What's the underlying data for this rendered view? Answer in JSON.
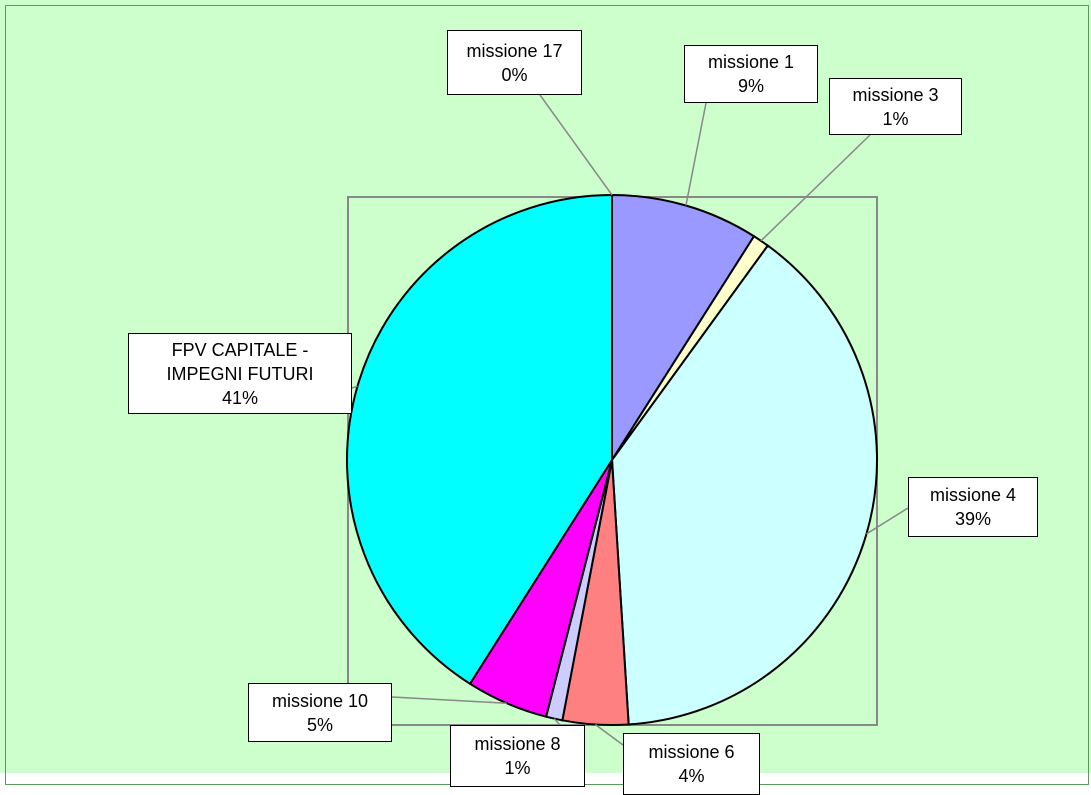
{
  "chart_data": {
    "type": "pie",
    "categories": [
      "missione 1",
      "missione 3",
      "missione 4",
      "missione 6",
      "missione 8",
      "missione 10",
      "FPV CAPITALE - IMPEGNI FUTURI",
      "missione 17"
    ],
    "values": [
      9,
      1,
      39,
      4,
      1,
      5,
      41,
      0
    ],
    "value_labels": [
      "9%",
      "1%",
      "39%",
      "4%",
      "1%",
      "5%",
      "41%",
      "0%"
    ],
    "colors": [
      "#9999ff",
      "#ffffcc",
      "#ccffff",
      "#ff8080",
      "#ccccff",
      "#ff00ff",
      "#00ffff",
      "#993366"
    ]
  }
}
